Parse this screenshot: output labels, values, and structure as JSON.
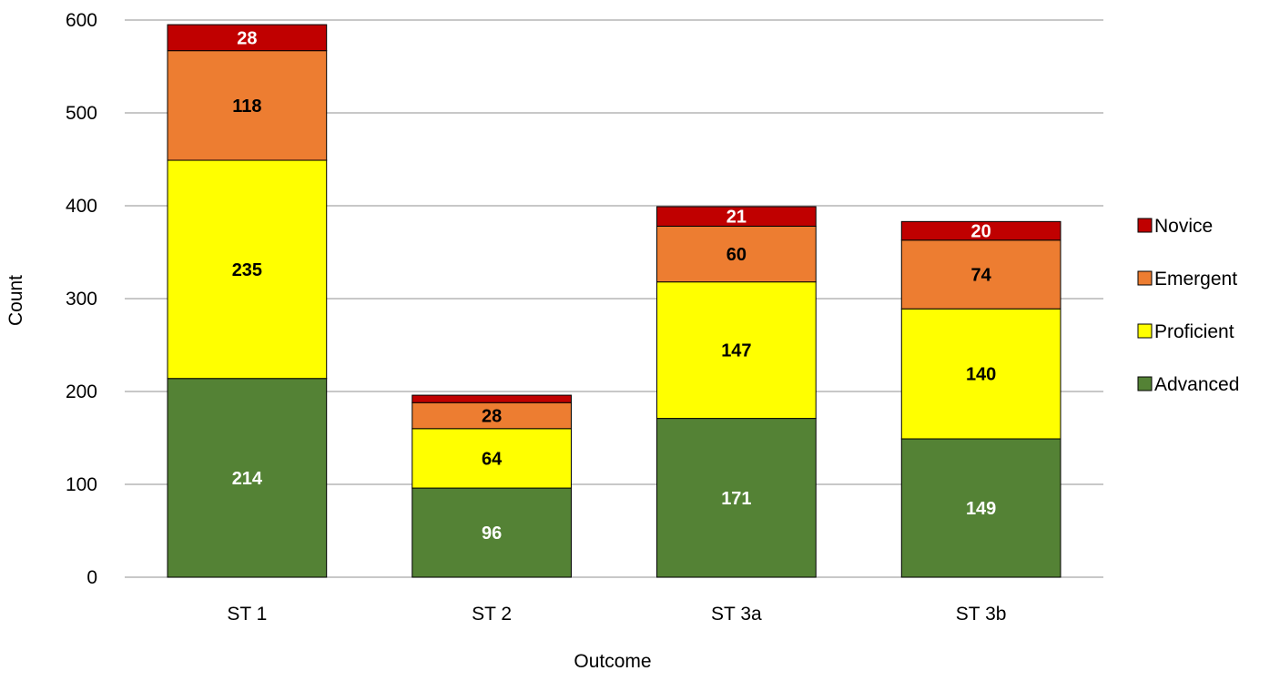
{
  "chart_data": {
    "type": "bar",
    "stacked": true,
    "xlabel": "Outcome",
    "ylabel": "Count",
    "ylim": [
      0,
      600
    ],
    "yticks": [
      0,
      100,
      200,
      300,
      400,
      500,
      600
    ],
    "grid": true,
    "legend_position": "right",
    "categories": [
      "ST 1",
      "ST 2",
      "ST 3a",
      "ST 3b"
    ],
    "series": [
      {
        "name": "Advanced",
        "color": "#548235",
        "label_color": "#ffffff",
        "values": [
          214,
          96,
          171,
          149
        ]
      },
      {
        "name": "Proficient",
        "color": "#ffff00",
        "label_color": "#000000",
        "values": [
          235,
          64,
          147,
          140
        ]
      },
      {
        "name": "Emergent",
        "color": "#ed7d31",
        "label_color": "#000000",
        "values": [
          118,
          28,
          60,
          74
        ]
      },
      {
        "name": "Novice",
        "color": "#c00000",
        "label_color": "#ffffff",
        "values": [
          28,
          8,
          21,
          20
        ],
        "labels": [
          "28",
          "",
          "21",
          "20"
        ]
      }
    ],
    "legend_order": [
      "Novice",
      "Emergent",
      "Proficient",
      "Advanced"
    ]
  }
}
